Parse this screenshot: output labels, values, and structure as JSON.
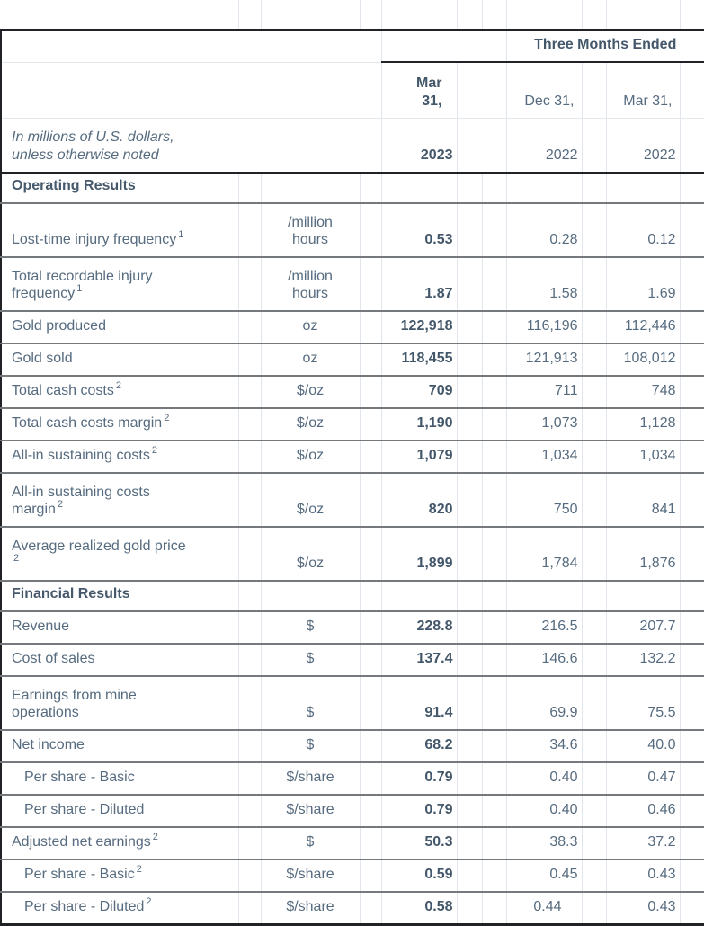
{
  "table": {
    "period_header": "Three Months Ended",
    "note": "In millions of U.S. dollars,\nunless otherwise noted",
    "columns": [
      {
        "date": "Mar\n31,",
        "year": "2023",
        "emphasis": true
      },
      {
        "date": "Dec 31,",
        "year": "2022",
        "emphasis": false
      },
      {
        "date": "Mar 31,",
        "year": "2022",
        "emphasis": false
      }
    ],
    "sections": [
      {
        "title": "Operating Results",
        "rows": [
          {
            "label": "Lost-time injury frequency",
            "sup": "1",
            "indent": false,
            "unit": "/million\nhours",
            "values": [
              "0.53",
              "0.28",
              "0.12"
            ]
          },
          {
            "label": "Total recordable injury\nfrequency",
            "sup": "1",
            "indent": false,
            "unit": "/million\nhours",
            "values": [
              "1.87",
              "1.58",
              "1.69"
            ]
          },
          {
            "label": "Gold produced",
            "sup": "",
            "indent": false,
            "unit": "oz",
            "values": [
              "122,918",
              "116,196",
              "112,446"
            ]
          },
          {
            "label": "Gold sold",
            "sup": "",
            "indent": false,
            "unit": "oz",
            "values": [
              "118,455",
              "121,913",
              "108,012"
            ]
          },
          {
            "label": "Total cash costs",
            "sup": "2",
            "indent": false,
            "unit": "$/oz",
            "values": [
              "709",
              "711",
              "748"
            ]
          },
          {
            "label": "Total cash costs margin",
            "sup": "2",
            "indent": false,
            "unit": "$/oz",
            "values": [
              "1,190",
              "1,073",
              "1,128"
            ]
          },
          {
            "label": "All-in sustaining costs",
            "sup": "2",
            "indent": false,
            "unit": "$/oz",
            "values": [
              "1,079",
              "1,034",
              "1,034"
            ]
          },
          {
            "label": "All-in sustaining costs\nmargin",
            "sup": "2",
            "indent": false,
            "unit": "$/oz",
            "values": [
              "820",
              "750",
              "841"
            ]
          },
          {
            "label": "Average realized gold price\n",
            "sup": "2",
            "indent": false,
            "unit": "$/oz",
            "values": [
              "1,899",
              "1,784",
              "1,876"
            ]
          }
        ]
      },
      {
        "title": "Financial Results",
        "rows": [
          {
            "label": "Revenue",
            "sup": "",
            "indent": false,
            "unit": "$",
            "values": [
              "228.8",
              "216.5",
              "207.7"
            ]
          },
          {
            "label": "Cost of sales",
            "sup": "",
            "indent": false,
            "unit": "$",
            "values": [
              "137.4",
              "146.6",
              "132.2"
            ]
          },
          {
            "label": "Earnings from mine\noperations",
            "sup": "",
            "indent": false,
            "unit": "$",
            "values": [
              "91.4",
              "69.9",
              "75.5"
            ]
          },
          {
            "label": "Net income",
            "sup": "",
            "indent": false,
            "unit": "$",
            "values": [
              "68.2",
              "34.6",
              "40.0"
            ]
          },
          {
            "label": "Per share - Basic",
            "sup": "",
            "indent": true,
            "unit": "$/share",
            "values": [
              "0.79",
              "0.40",
              "0.47"
            ]
          },
          {
            "label": "Per share - Diluted",
            "sup": "",
            "indent": true,
            "unit": "$/share",
            "values": [
              "0.79",
              "0.40",
              "0.46"
            ]
          },
          {
            "label": "Adjusted net earnings",
            "sup": "2",
            "indent": false,
            "unit": "$",
            "values": [
              "50.3",
              "38.3",
              "37.2"
            ]
          },
          {
            "label": "Per share - Basic",
            "sup": "2",
            "indent": true,
            "unit": "$/share",
            "values": [
              "0.59",
              "0.45",
              "0.43"
            ]
          },
          {
            "label": "Per share - Diluted",
            "sup": "2",
            "indent": true,
            "unit": "$/share",
            "values": [
              "0.58",
              "0.44",
              "0.43"
            ]
          }
        ]
      }
    ]
  }
}
